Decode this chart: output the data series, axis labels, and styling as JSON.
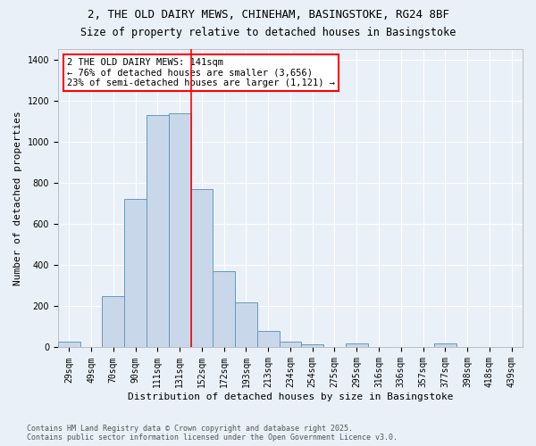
{
  "title1": "2, THE OLD DAIRY MEWS, CHINEHAM, BASINGSTOKE, RG24 8BF",
  "title2": "Size of property relative to detached houses in Basingstoke",
  "xlabel": "Distribution of detached houses by size in Basingstoke",
  "ylabel": "Number of detached properties",
  "categories": [
    "29sqm",
    "49sqm",
    "70sqm",
    "90sqm",
    "111sqm",
    "131sqm",
    "152sqm",
    "172sqm",
    "193sqm",
    "213sqm",
    "234sqm",
    "254sqm",
    "275sqm",
    "295sqm",
    "316sqm",
    "336sqm",
    "357sqm",
    "377sqm",
    "398sqm",
    "418sqm",
    "439sqm"
  ],
  "values": [
    30,
    3,
    250,
    720,
    1130,
    1140,
    770,
    370,
    220,
    80,
    30,
    15,
    3,
    20,
    3,
    3,
    3,
    20,
    3,
    3,
    3
  ],
  "bar_color": "#c8d8ea",
  "bar_edge_color": "#6699bb",
  "red_line_x": 5.5,
  "annotation_text": "2 THE OLD DAIRY MEWS: 141sqm\n← 76% of detached houses are smaller (3,656)\n23% of semi-detached houses are larger (1,121) →",
  "annotation_box_color": "white",
  "annotation_box_edge_color": "red",
  "ylim": [
    0,
    1450
  ],
  "yticks": [
    0,
    200,
    400,
    600,
    800,
    1000,
    1200,
    1400
  ],
  "background_color": "#eaf0f8",
  "footnote1": "Contains HM Land Registry data © Crown copyright and database right 2025.",
  "footnote2": "Contains public sector information licensed under the Open Government Licence v3.0.",
  "title_fontsize": 9,
  "subtitle_fontsize": 8.5,
  "axis_label_fontsize": 8,
  "tick_fontsize": 7,
  "annotation_fontsize": 7.5
}
